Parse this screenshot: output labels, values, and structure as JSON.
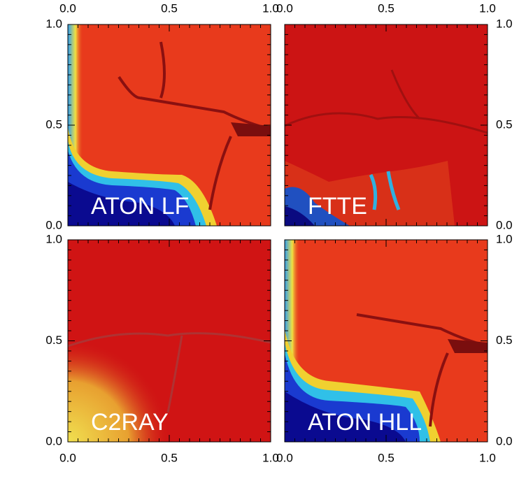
{
  "chart_data": [
    {
      "type": "image",
      "title": "ATON LF",
      "xlim": [
        0,
        1
      ],
      "ylim": [
        0,
        1
      ],
      "xticks": [
        {
          "value": 0,
          "label": "0.0"
        },
        {
          "value": 0.5,
          "label": "0.5"
        },
        {
          "value": 1,
          "label": "1.0"
        }
      ],
      "yticks": [
        {
          "value": 0,
          "label": "0.0"
        },
        {
          "value": 0.5,
          "label": "0.5"
        },
        {
          "value": 1,
          "label": "1.0"
        }
      ],
      "xaxis_position": "top",
      "yaxis_position": "left"
    },
    {
      "type": "image",
      "title": "FTTE",
      "xlim": [
        0,
        1
      ],
      "ylim": [
        0,
        1
      ],
      "xticks": [
        {
          "value": 0,
          "label": "0.0"
        },
        {
          "value": 0.5,
          "label": "0.5"
        },
        {
          "value": 1,
          "label": "1.0"
        }
      ],
      "yticks": [
        {
          "value": 0,
          "label": "0.0"
        },
        {
          "value": 0.5,
          "label": "0.5"
        },
        {
          "value": 1,
          "label": "1.0"
        }
      ],
      "xaxis_position": "top",
      "yaxis_position": "right"
    },
    {
      "type": "image",
      "title": "C2RAY",
      "xlim": [
        0,
        1
      ],
      "ylim": [
        0,
        1
      ],
      "xticks": [
        {
          "value": 0,
          "label": "0.0"
        },
        {
          "value": 0.5,
          "label": "0.5"
        },
        {
          "value": 1,
          "label": "1.0"
        }
      ],
      "yticks": [
        {
          "value": 0,
          "label": "0.0"
        },
        {
          "value": 0.5,
          "label": "0.5"
        },
        {
          "value": 1,
          "label": "1.0"
        }
      ],
      "xaxis_position": "bottom",
      "yaxis_position": "left"
    },
    {
      "type": "image",
      "title": "ATON HLL",
      "xlim": [
        0,
        1
      ],
      "ylim": [
        0,
        1
      ],
      "xticks": [
        {
          "value": 0,
          "label": "0.0"
        },
        {
          "value": 0.5,
          "label": "0.5"
        },
        {
          "value": 1,
          "label": "1.0"
        }
      ],
      "yticks": [
        {
          "value": 0,
          "label": "0.0"
        },
        {
          "value": 0.5,
          "label": "0.5"
        },
        {
          "value": 1,
          "label": "1.0"
        }
      ],
      "xaxis_position": "bottom",
      "yaxis_position": "right"
    }
  ]
}
